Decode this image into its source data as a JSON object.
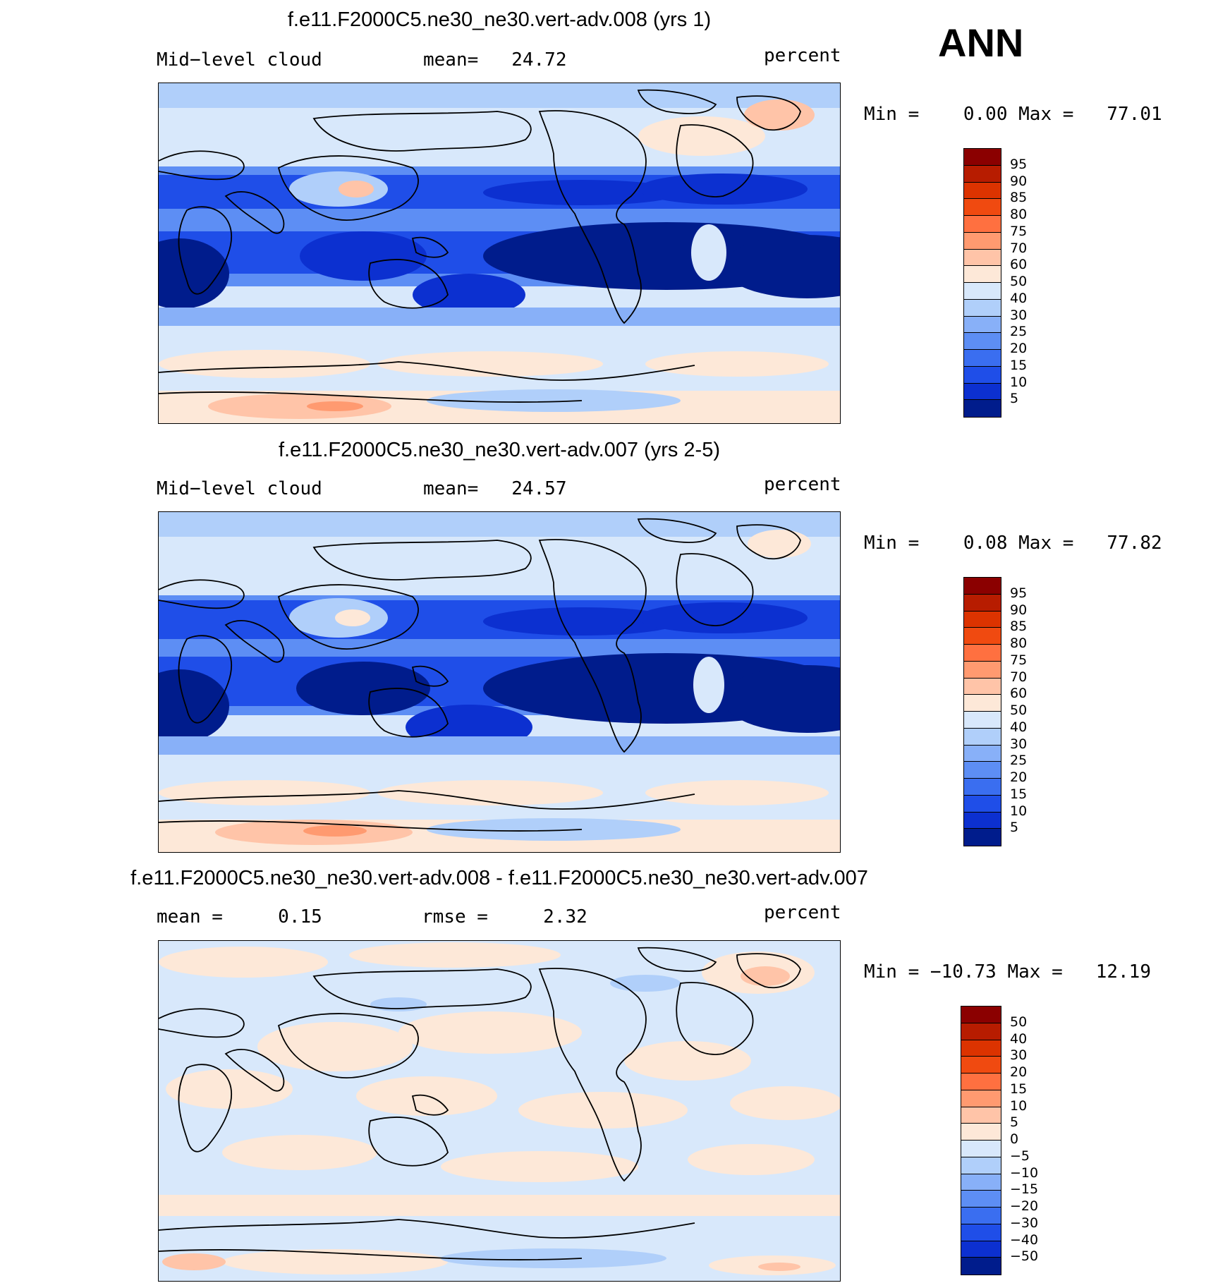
{
  "season_label": "ANN",
  "panels": [
    {
      "title": "f.e11.F2000C5.ne30_ne30.vert-adv.008 (yrs 1)",
      "left_label": "Mid−level cloud",
      "center_label": "mean=   24.72",
      "units": "percent",
      "minmax": "Min =    0.00 Max =   77.01",
      "colorbar": {
        "labels": [
          "95",
          "90",
          "85",
          "80",
          "75",
          "70",
          "60",
          "50",
          "40",
          "30",
          "25",
          "20",
          "15",
          "10",
          "5"
        ],
        "colors": [
          "#8b0000",
          "#b71c00",
          "#dc3300",
          "#f04a10",
          "#ff7040",
          "#ff9a70",
          "#ffc4a8",
          "#fde8d8",
          "#d8e8fb",
          "#b0cffa",
          "#88b0f8",
          "#5d8ef4",
          "#3a6ef0",
          "#1f4ee8",
          "#0c30d0",
          "#001c8c"
        ]
      }
    },
    {
      "title": "f.e11.F2000C5.ne30_ne30.vert-adv.007 (yrs 2-5)",
      "left_label": "Mid−level cloud",
      "center_label": "mean=   24.57",
      "units": "percent",
      "minmax": "Min =    0.08 Max =   77.82",
      "colorbar": {
        "labels": [
          "95",
          "90",
          "85",
          "80",
          "75",
          "70",
          "60",
          "50",
          "40",
          "30",
          "25",
          "20",
          "15",
          "10",
          "5"
        ],
        "colors": [
          "#8b0000",
          "#b71c00",
          "#dc3300",
          "#f04a10",
          "#ff7040",
          "#ff9a70",
          "#ffc4a8",
          "#fde8d8",
          "#d8e8fb",
          "#b0cffa",
          "#88b0f8",
          "#5d8ef4",
          "#3a6ef0",
          "#1f4ee8",
          "#0c30d0",
          "#001c8c"
        ]
      }
    },
    {
      "title": "f.e11.F2000C5.ne30_ne30.vert-adv.008 - f.e11.F2000C5.ne30_ne30.vert-adv.007",
      "left_label": "mean =     0.15",
      "center_label": "rmse =     2.32",
      "units": "percent",
      "minmax": "Min = −10.73 Max =   12.19",
      "colorbar": {
        "labels": [
          "50",
          "40",
          "30",
          "20",
          "15",
          "10",
          "5",
          "0",
          "−5",
          "−10",
          "−15",
          "−20",
          "−30",
          "−40",
          "−50"
        ],
        "colors": [
          "#8b0000",
          "#b71c00",
          "#dc3300",
          "#f04a10",
          "#ff7040",
          "#ff9a70",
          "#ffc4a8",
          "#fde8d8",
          "#d8e8fb",
          "#b0cffa",
          "#88b0f8",
          "#5d8ef4",
          "#3a6ef0",
          "#1f4ee8",
          "#0c30d0",
          "#001c8c"
        ]
      }
    }
  ]
}
